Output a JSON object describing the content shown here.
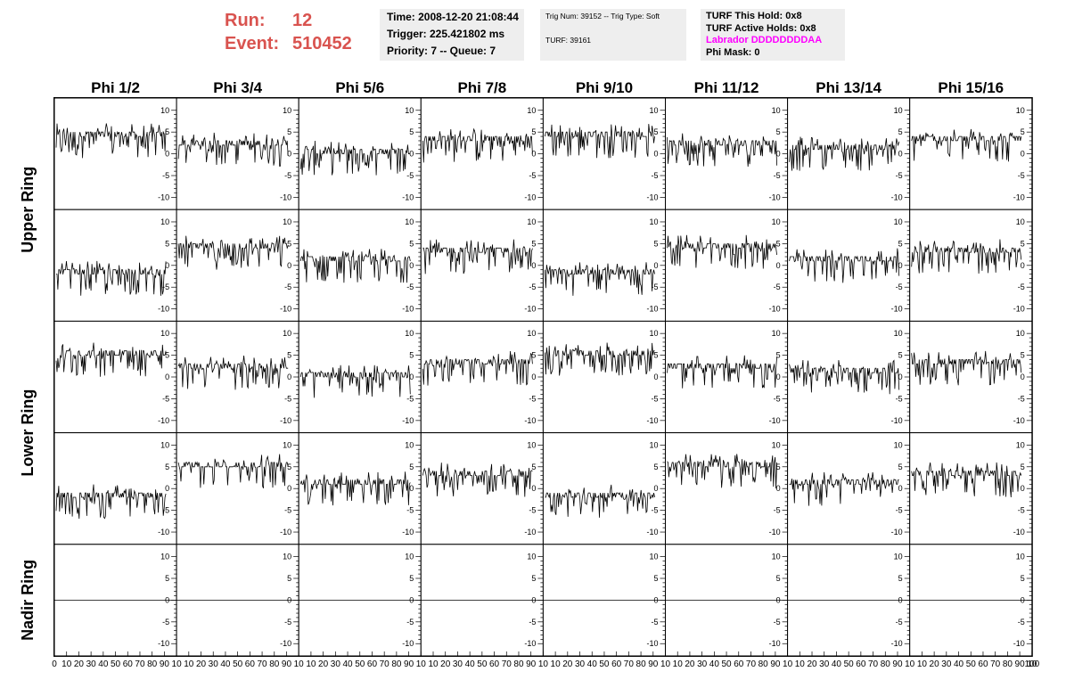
{
  "header": {
    "run_label": "Run:",
    "run_value": "12",
    "event_label": "Event:",
    "event_value": "510452"
  },
  "info_time": {
    "time": "Time: 2008-12-20 21:08:44",
    "trigger": "Trigger: 225.421802 ms",
    "priority": "Priority: 7 -- Queue: 7"
  },
  "info_trig": {
    "trig": "Trig Num: 39152 -- Trig Type: Soft",
    "turf": "TURF: 39161"
  },
  "info_turf": {
    "hold": "TURF This Hold: 0x8",
    "active": "TURF Active Holds: 0x8",
    "labrador": "Labrador DDDDDDDDAA",
    "phi_mask": "Phi Mask: 0"
  },
  "colors": {
    "run_text": "#d9534f",
    "labrador": "#ff00ff",
    "box_bg": "#eeeeee",
    "trace": "#000000"
  },
  "chart_data": {
    "type": "line",
    "columns": [
      "Phi 1/2",
      "Phi 3/4",
      "Phi 5/6",
      "Phi 7/8",
      "Phi 9/10",
      "Phi 11/12",
      "Phi 13/14",
      "Phi 15/16"
    ],
    "row_groups": [
      "Upper Ring",
      "Lower Ring",
      "Nadir Ring"
    ],
    "rows_per_group": [
      2,
      2,
      1
    ],
    "ylim": [
      -12,
      12
    ],
    "xlim": [
      0,
      100
    ],
    "y_ticks": [
      -10,
      -5,
      0,
      5,
      10
    ],
    "x_tick_labels_first": [
      "0",
      "10",
      "20",
      "30",
      "40",
      "50",
      "60",
      "70",
      "80",
      "90",
      "10"
    ],
    "x_tick_labels": [
      "10",
      "20",
      "30",
      "40",
      "50",
      "60",
      "70",
      "80",
      "90",
      "10"
    ],
    "x_tick_label_last": "100",
    "baseline_levels": [
      [
        4,
        2,
        0,
        3,
        4,
        2,
        1,
        3
      ],
      [
        -2,
        4,
        1,
        3,
        -2,
        4,
        1,
        3
      ],
      [
        5,
        2,
        0,
        3,
        5,
        2,
        1,
        3
      ],
      [
        -2,
        5,
        1,
        3,
        -2,
        5,
        1,
        3
      ],
      [
        0,
        0,
        0,
        0,
        0,
        0,
        0,
        0
      ]
    ]
  }
}
